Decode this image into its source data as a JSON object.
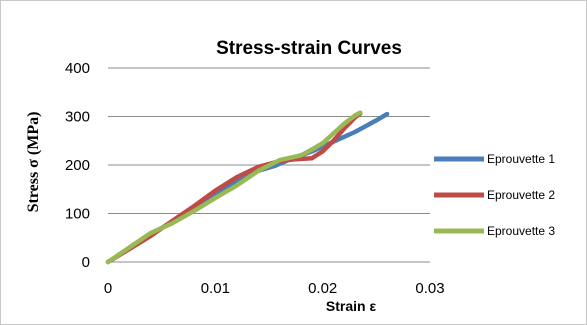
{
  "chart_data": {
    "type": "line",
    "title": "Stress-strain Curves",
    "xlabel": "Strain ε",
    "ylabel": "Stress σ (MPa)",
    "xlim": [
      0,
      0.03
    ],
    "ylim": [
      0,
      400
    ],
    "x_ticks": [
      0,
      0.01,
      0.02,
      0.03
    ],
    "x_tick_labels": [
      "0",
      "0.01",
      "0.02",
      "0.03"
    ],
    "y_ticks": [
      0,
      100,
      200,
      300,
      400
    ],
    "y_tick_labels": [
      "0",
      "100",
      "200",
      "300",
      "400"
    ],
    "grid": "horizontal",
    "legend_position": "right",
    "series": [
      {
        "name": "Eprouvette 1",
        "color": "#4a7ebb",
        "x": [
          0,
          0.002,
          0.004,
          0.006,
          0.008,
          0.01,
          0.012,
          0.014,
          0.0155,
          0.017,
          0.019,
          0.021,
          0.023,
          0.025,
          0.026
        ],
        "y": [
          0,
          28,
          56,
          84,
          110,
          138,
          165,
          188,
          198,
          212,
          228,
          248,
          268,
          292,
          305
        ]
      },
      {
        "name": "Eprouvette 2",
        "color": "#be4b48",
        "x": [
          0,
          0.002,
          0.004,
          0.006,
          0.008,
          0.01,
          0.012,
          0.014,
          0.016,
          0.0175,
          0.019,
          0.02,
          0.021,
          0.022,
          0.023,
          0.0235
        ],
        "y": [
          0,
          27,
          54,
          85,
          115,
          147,
          175,
          196,
          208,
          212,
          214,
          228,
          250,
          275,
          298,
          306
        ]
      },
      {
        "name": "Eprouvette 3",
        "color": "#98b954",
        "x": [
          0,
          0.002,
          0.004,
          0.006,
          0.008,
          0.01,
          0.012,
          0.014,
          0.016,
          0.018,
          0.019,
          0.02,
          0.021,
          0.022,
          0.023,
          0.0235
        ],
        "y": [
          0,
          30,
          60,
          80,
          105,
          132,
          158,
          188,
          210,
          220,
          232,
          245,
          265,
          285,
          302,
          308
        ]
      }
    ]
  }
}
